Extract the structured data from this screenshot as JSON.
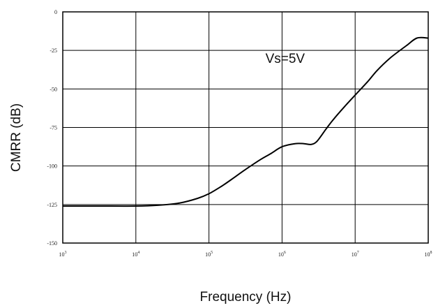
{
  "chart_data": {
    "type": "line",
    "title": "",
    "xlabel": "Frequency (Hz)",
    "ylabel": "CMRR (dB)",
    "x_scale": "log",
    "xlim": [
      1000,
      100000000
    ],
    "ylim": [
      -150,
      0
    ],
    "x_ticks": [
      {
        "value": 1000,
        "label": "10",
        "exp": "3"
      },
      {
        "value": 10000,
        "label": "10",
        "exp": "4"
      },
      {
        "value": 100000,
        "label": "10",
        "exp": "5"
      },
      {
        "value": 1000000,
        "label": "10",
        "exp": "6"
      },
      {
        "value": 10000000,
        "label": "10",
        "exp": "7"
      },
      {
        "value": 100000000,
        "label": "10",
        "exp": "8"
      }
    ],
    "y_ticks": [
      {
        "value": 0,
        "label": "0"
      },
      {
        "value": -25,
        "label": "-25"
      },
      {
        "value": -50,
        "label": "-50"
      },
      {
        "value": -75,
        "label": "-75"
      },
      {
        "value": -100,
        "label": "-100"
      },
      {
        "value": -125,
        "label": "-125"
      },
      {
        "value": -150,
        "label": "-150"
      }
    ],
    "grid": "major",
    "annotation": {
      "text": "Vs=5V",
      "x": 1500000,
      "y": -30
    },
    "series": [
      {
        "color": "#000000",
        "x": [
          1000,
          3000,
          10000,
          20000,
          40000,
          70000,
          100000,
          150000,
          200000,
          300000,
          500000,
          700000,
          1000000,
          1500000,
          2000000,
          2500000,
          3000000,
          4000000,
          5000000,
          7000000,
          10000000,
          15000000,
          20000000,
          30000000,
          50000000,
          70000000,
          100000000
        ],
        "y": [
          -126,
          -126,
          -126,
          -125.5,
          -124,
          -121,
          -118,
          -113,
          -109,
          -103,
          -96,
          -92,
          -87.5,
          -85.5,
          -85.5,
          -86,
          -84,
          -76,
          -70,
          -62,
          -54,
          -45,
          -38,
          -30,
          -22,
          -17,
          -17
        ]
      }
    ]
  }
}
